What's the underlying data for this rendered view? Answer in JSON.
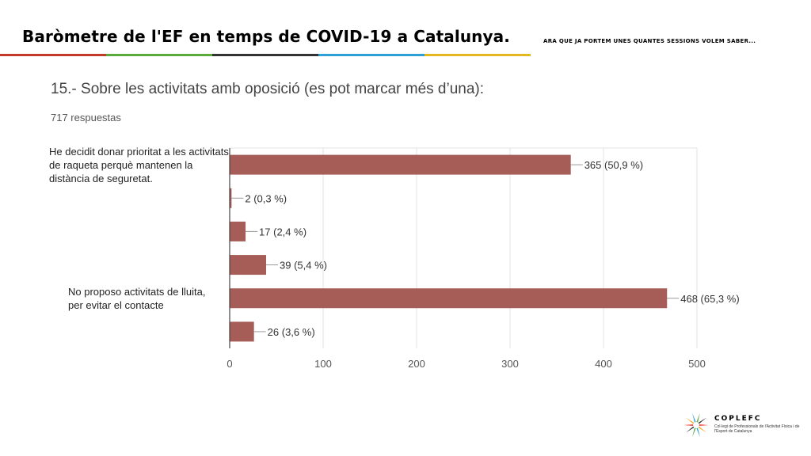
{
  "header": {
    "title": "Baròmetre de l'EF en temps de COVID-19 a Catalunya.",
    "subtitle": "ARA QUE JA PORTEM UNES QUANTES SESSIONS VOLEM SABER...",
    "bar_colors": [
      "#c23b2a",
      "#5aaa3c",
      "#333333",
      "#2ea0d6",
      "#e6b820"
    ]
  },
  "question": "15.- Sobre les activitats amb oposició (es pot marcar més d’una):",
  "responses": "717 respuestas",
  "chart_data": {
    "type": "bar",
    "orientation": "horizontal",
    "categories": [
      "He decidit donar prioritat a les activitats de raqueta perquè mantenen la distància de seguretat.",
      "",
      "",
      "",
      "No proposo activitats de lluita, per evitar el contacte",
      ""
    ],
    "category_lines": [
      [
        "He decidit donar prioritat a les activitats",
        "de raqueta perquè mantenen la",
        "distància de seguretat."
      ],
      [],
      [],
      [],
      [
        "No proposo activitats de lluita,",
        "per evitar el contacte"
      ],
      []
    ],
    "values": [
      365,
      2,
      17,
      39,
      468,
      26
    ],
    "value_labels": [
      "365 (50,9 %)",
      "2 (0,3 %)",
      "17 (2,4 %)",
      "39 (5,4 %)",
      "468 (65,3 %)",
      "26 (3,6 %)"
    ],
    "xticks": [
      0,
      100,
      200,
      300,
      400,
      500
    ],
    "xlim": [
      0,
      500
    ],
    "grid": true,
    "bar_color": "#a65d57"
  },
  "logo": {
    "name": "COPLEFC",
    "subtitle": "Col·legi de Professionals de l'Activitat Física i de l'Esport de Catalunya",
    "colors": [
      "#e63323",
      "#f5a623",
      "#2ea0d6",
      "#5aaa3c",
      "#333333"
    ]
  }
}
